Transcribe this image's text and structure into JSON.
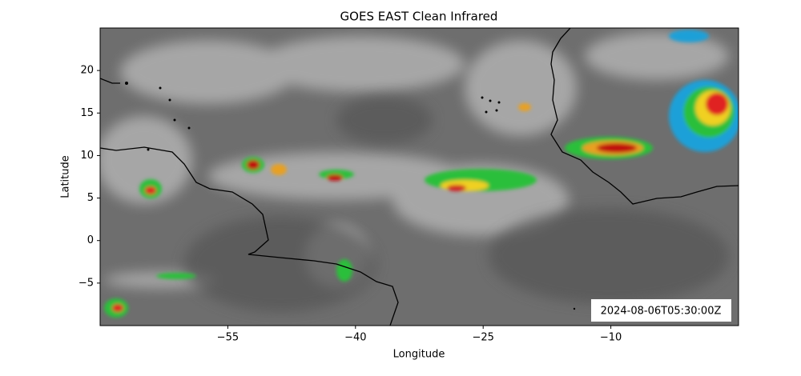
{
  "chart_data": {
    "type": "map",
    "title": "GOES EAST Clean Infrared",
    "xlabel": "Longitude",
    "ylabel": "Latitude",
    "xlim": [
      -70,
      5
    ],
    "ylim": [
      -10,
      25
    ],
    "xticks": [
      {
        "value": -55,
        "label": "−55"
      },
      {
        "value": -40,
        "label": "−40"
      },
      {
        "value": -25,
        "label": "−25"
      },
      {
        "value": -10,
        "label": "−10"
      }
    ],
    "yticks": [
      20,
      15,
      10,
      5,
      0,
      {
        "value": -5,
        "label": "−5"
      }
    ],
    "annotation": "2024-08-06T05:30:00Z"
  }
}
